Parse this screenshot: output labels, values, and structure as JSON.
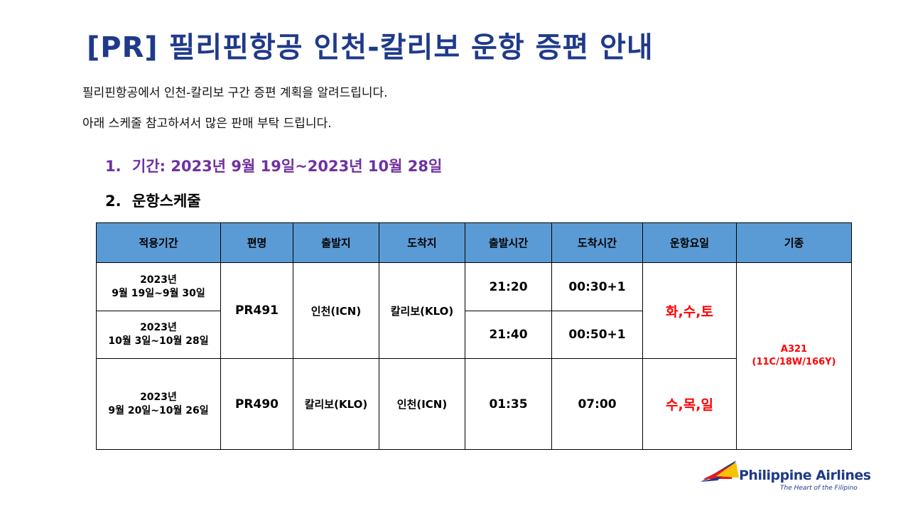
{
  "title": "[PR] 필리핀항공 인천-칼리보 운항 증편 안내",
  "intro": [
    "필리핀항공에서 인천-칼리보 구간 증편 계획을 알려드립니다.",
    "아래 스케줄 참고하셔서 많은 판매 부탁 드립니다."
  ],
  "sections": [
    {
      "num": "1.",
      "text": "기간: 2023년 9월 19일~2023년 10월 28일"
    },
    {
      "num": "2.",
      "text": "운항스케줄"
    }
  ],
  "table": {
    "headers": [
      "적용기간",
      "편명",
      "출발지",
      "도착지",
      "출발시간",
      "도착시간",
      "운항요일",
      "기종"
    ],
    "rows": [
      {
        "period_line1": "2023년",
        "period_line2": "9월 19일~9월 30일",
        "flight": "PR491",
        "from": "인천(ICN)",
        "to": "칼리보(KLO)",
        "dep": "21:20",
        "arr": "00:30+1",
        "days": "화,수,토"
      },
      {
        "period_line1": "2023년",
        "period_line2": "10월 3일~10월 28일",
        "dep": "21:40",
        "arr": "00:50+1"
      },
      {
        "period_line1": "2023년",
        "period_line2": "9월 20일~10월 26일",
        "flight": "PR490",
        "from": "칼리보(KLO)",
        "to": "인천(ICN)",
        "dep": "01:35",
        "arr": "07:00",
        "days": "수,목,일"
      }
    ],
    "aircraft_line1": "A321",
    "aircraft_line2": "(11C/18W/166Y)"
  },
  "logo": {
    "name": "Philippine Airlines",
    "tagline": "The Heart of the Filipino"
  },
  "colors": {
    "title": "#1f3a8a",
    "section1": "#7030a0",
    "header_bg": "#5b9bd5",
    "highlight_red": "#ff0000"
  }
}
